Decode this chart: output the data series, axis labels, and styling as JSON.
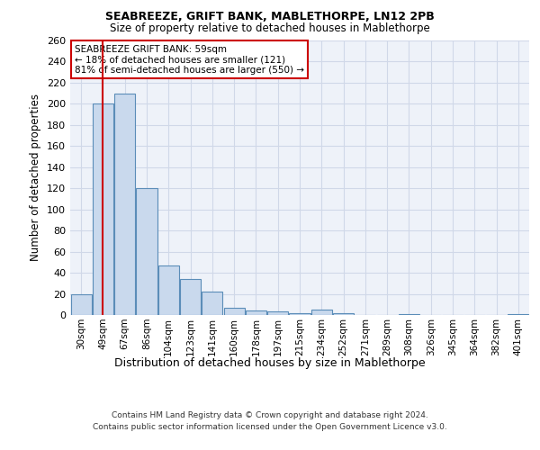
{
  "title1": "SEABREEZE, GRIFT BANK, MABLETHORPE, LN12 2PB",
  "title2": "Size of property relative to detached houses in Mablethorpe",
  "xlabel": "Distribution of detached houses by size in Mablethorpe",
  "ylabel": "Number of detached properties",
  "categories": [
    "30sqm",
    "49sqm",
    "67sqm",
    "86sqm",
    "104sqm",
    "123sqm",
    "141sqm",
    "160sqm",
    "178sqm",
    "197sqm",
    "215sqm",
    "234sqm",
    "252sqm",
    "271sqm",
    "289sqm",
    "308sqm",
    "326sqm",
    "345sqm",
    "364sqm",
    "382sqm",
    "401sqm"
  ],
  "values": [
    20,
    200,
    210,
    120,
    47,
    34,
    22,
    7,
    4,
    3,
    2,
    5,
    2,
    0,
    0,
    1,
    0,
    0,
    0,
    0,
    1
  ],
  "bar_color": "#c9d9ed",
  "bar_edge_color": "#5b8db8",
  "vline_x": 1,
  "vline_color": "#cc0000",
  "annotation_text": "SEABREEZE GRIFT BANK: 59sqm\n← 18% of detached houses are smaller (121)\n81% of semi-detached houses are larger (550) →",
  "annotation_box_color": "#ffffff",
  "annotation_box_edge": "#cc0000",
  "grid_color": "#d0d8e8",
  "bg_color": "#eef2f9",
  "footer": "Contains HM Land Registry data © Crown copyright and database right 2024.\nContains public sector information licensed under the Open Government Licence v3.0.",
  "ylim": [
    0,
    260
  ],
  "yticks": [
    0,
    20,
    40,
    60,
    80,
    100,
    120,
    140,
    160,
    180,
    200,
    220,
    240,
    260
  ]
}
